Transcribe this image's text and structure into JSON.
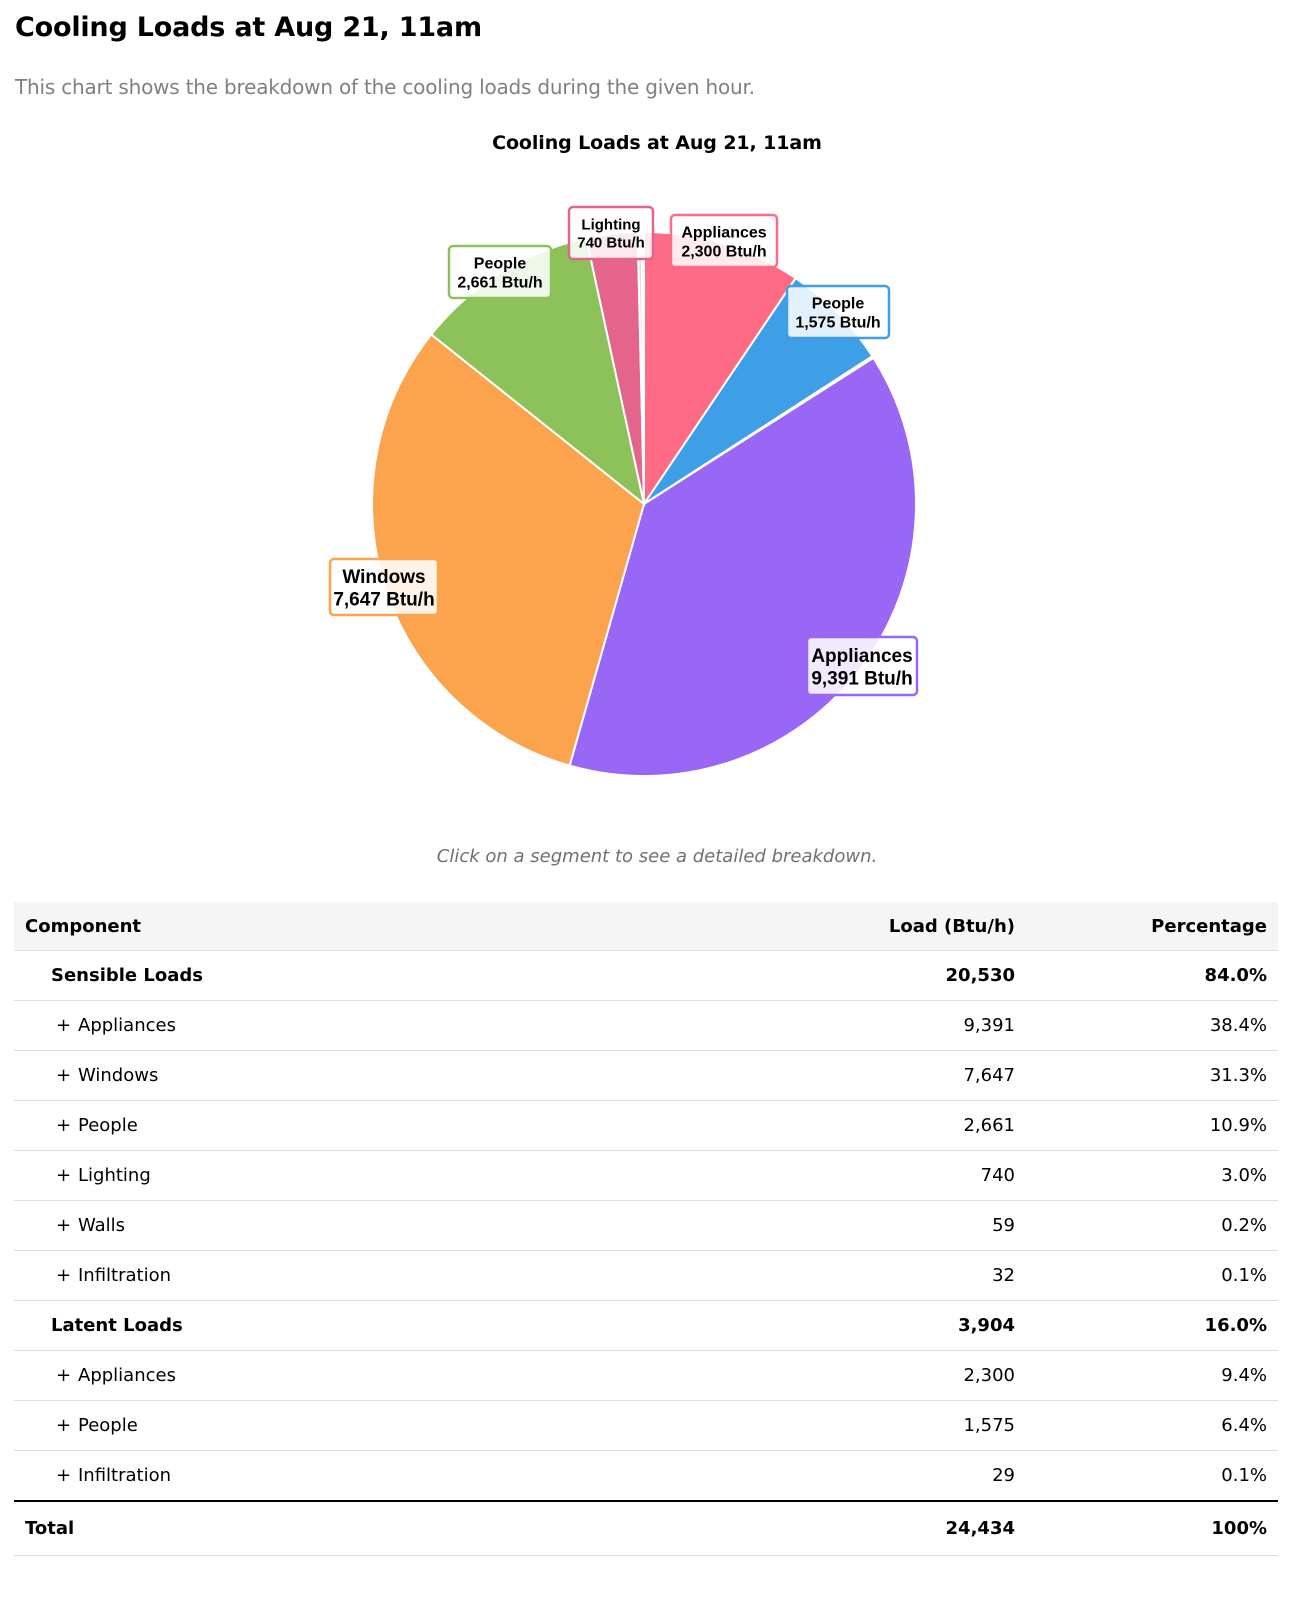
{
  "page": {
    "title": "Cooling Loads at Aug 21, 11am",
    "description": "This chart shows the breakdown of the cooling loads during the given hour.",
    "hint": "Click on a segment to see a detailed breakdown."
  },
  "chart_data": {
    "type": "pie",
    "title": "Cooling Loads at Aug 21, 11am",
    "unit": "Btu/h",
    "slices": [
      {
        "label": "Appliances",
        "value": 2300,
        "value_text": "2,300 Btu/h",
        "color": "#ff6b85",
        "show_label": true
      },
      {
        "label": "People",
        "value": 1575,
        "value_text": "1,575 Btu/h",
        "color": "#3e9fe6",
        "show_label": true
      },
      {
        "label": "Infiltration",
        "value": 29,
        "value_text": "29 Btu/h",
        "color": "#c0c0c0",
        "show_label": false
      },
      {
        "label": "Appliances",
        "value": 9391,
        "value_text": "9,391 Btu/h",
        "color": "#9966f5",
        "show_label": true
      },
      {
        "label": "Windows",
        "value": 7647,
        "value_text": "7,647 Btu/h",
        "color": "#fba34d",
        "show_label": true
      },
      {
        "label": "People",
        "value": 2661,
        "value_text": "2,661 Btu/h",
        "color": "#8dc25a",
        "show_label": true
      },
      {
        "label": "Lighting",
        "value": 740,
        "value_text": "740 Btu/h",
        "color": "#e5648b",
        "show_label": true
      },
      {
        "label": "Walls",
        "value": 59,
        "value_text": "59 Btu/h",
        "color": "#e0e0e0",
        "show_label": false
      },
      {
        "label": "Infiltration",
        "value": 32,
        "value_text": "32 Btu/h",
        "color": "#47c1c4",
        "show_label": false
      }
    ]
  },
  "table": {
    "headers": {
      "component": "Component",
      "load": "Load (Btu/h)",
      "percentage": "Percentage"
    },
    "sensible": {
      "name": "Sensible Loads",
      "load": "20,530",
      "pct": "84.0%"
    },
    "sensible_items": [
      {
        "expand": "+",
        "name": "Appliances",
        "load": "9,391",
        "pct": "38.4%"
      },
      {
        "expand": "+",
        "name": "Windows",
        "load": "7,647",
        "pct": "31.3%"
      },
      {
        "expand": "+",
        "name": "People",
        "load": "2,661",
        "pct": "10.9%"
      },
      {
        "expand": "+",
        "name": "Lighting",
        "load": "740",
        "pct": "3.0%"
      },
      {
        "expand": "+",
        "name": "Walls",
        "load": "59",
        "pct": "0.2%"
      },
      {
        "expand": "+",
        "name": "Infiltration",
        "load": "32",
        "pct": "0.1%"
      }
    ],
    "latent": {
      "name": "Latent Loads",
      "load": "3,904",
      "pct": "16.0%"
    },
    "latent_items": [
      {
        "expand": "+",
        "name": "Appliances",
        "load": "2,300",
        "pct": "9.4%"
      },
      {
        "expand": "+",
        "name": "People",
        "load": "1,575",
        "pct": "6.4%"
      },
      {
        "expand": "+",
        "name": "Infiltration",
        "load": "29",
        "pct": "0.1%"
      }
    ],
    "total": {
      "name": "Total",
      "load": "24,434",
      "pct": "100%"
    }
  }
}
